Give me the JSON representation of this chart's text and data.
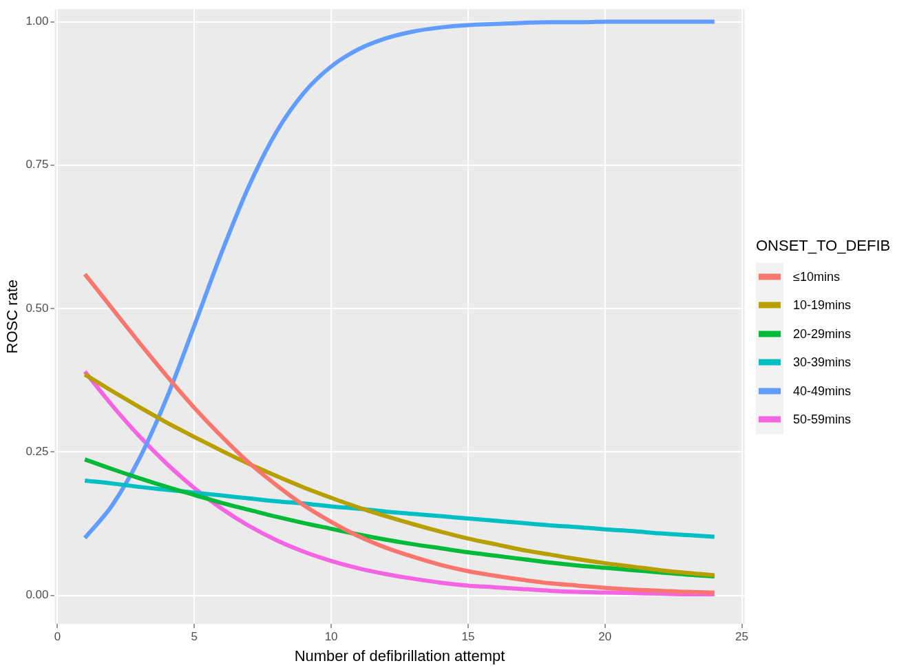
{
  "chart_data": {
    "type": "line",
    "xlabel": "Number of defibrillation attempt",
    "ylabel": "ROSC rate",
    "legend_title": "ONSET_TO_DEFIB",
    "x": [
      1,
      2,
      3,
      4,
      5,
      6,
      7,
      8,
      9,
      10,
      11,
      12,
      13,
      14,
      15,
      16,
      17,
      18,
      19,
      20,
      21,
      22,
      23,
      24
    ],
    "series": [
      {
        "name": "≤10mins",
        "color": "#f8766d",
        "values": [
          0.56,
          0.5,
          0.44,
          0.382,
          0.327,
          0.277,
          0.231,
          0.192,
          0.157,
          0.128,
          0.103,
          0.083,
          0.067,
          0.053,
          0.042,
          0.034,
          0.027,
          0.021,
          0.017,
          0.013,
          0.01,
          0.008,
          0.006,
          0.005
        ]
      },
      {
        "name": "10-19mins",
        "color": "#b79f00",
        "values": [
          0.385,
          0.356,
          0.328,
          0.301,
          0.276,
          0.252,
          0.229,
          0.208,
          0.188,
          0.17,
          0.153,
          0.138,
          0.124,
          0.111,
          0.099,
          0.089,
          0.079,
          0.071,
          0.063,
          0.056,
          0.05,
          0.044,
          0.039,
          0.035
        ]
      },
      {
        "name": "20-29mins",
        "color": "#00ba38",
        "values": [
          0.237,
          0.22,
          0.204,
          0.189,
          0.175,
          0.161,
          0.149,
          0.137,
          0.126,
          0.116,
          0.106,
          0.097,
          0.089,
          0.082,
          0.075,
          0.069,
          0.063,
          0.057,
          0.052,
          0.048,
          0.044,
          0.04,
          0.036,
          0.033
        ]
      },
      {
        "name": "30-39mins",
        "color": "#00bfc4",
        "values": [
          0.2,
          0.195,
          0.189,
          0.184,
          0.179,
          0.174,
          0.169,
          0.164,
          0.16,
          0.155,
          0.151,
          0.146,
          0.142,
          0.138,
          0.134,
          0.13,
          0.126,
          0.122,
          0.119,
          0.115,
          0.112,
          0.108,
          0.105,
          0.102
        ]
      },
      {
        "name": "40-49mins",
        "color": "#619cff",
        "values": [
          0.1,
          0.157,
          0.239,
          0.345,
          0.47,
          0.598,
          0.714,
          0.808,
          0.876,
          0.922,
          0.952,
          0.971,
          0.983,
          0.99,
          0.994,
          0.996,
          0.998,
          0.999,
          0.999,
          1.0,
          1.0,
          1.0,
          1.0,
          1.0
        ]
      },
      {
        "name": "50-59mins",
        "color": "#f564e3",
        "values": [
          0.39,
          0.331,
          0.277,
          0.229,
          0.187,
          0.151,
          0.121,
          0.096,
          0.076,
          0.06,
          0.047,
          0.037,
          0.029,
          0.022,
          0.017,
          0.014,
          0.011,
          0.008,
          0.006,
          0.005,
          0.004,
          0.003,
          0.002,
          0.002
        ]
      }
    ],
    "xlim": [
      -0.1,
      25.1
    ],
    "xticks": [
      0,
      5,
      10,
      15,
      20,
      25
    ],
    "ylim": [
      -0.05,
      1.022
    ],
    "yticks": [
      {
        "value": 0,
        "label": "0.00"
      },
      {
        "value": 0.25,
        "label": "0.25"
      },
      {
        "value": 0.5,
        "label": "0.50"
      },
      {
        "value": 0.75,
        "label": "0.75"
      },
      {
        "value": 1,
        "label": "1.00"
      }
    ],
    "grid": true,
    "legend": "right",
    "marker": "none",
    "line_style": "solid"
  }
}
